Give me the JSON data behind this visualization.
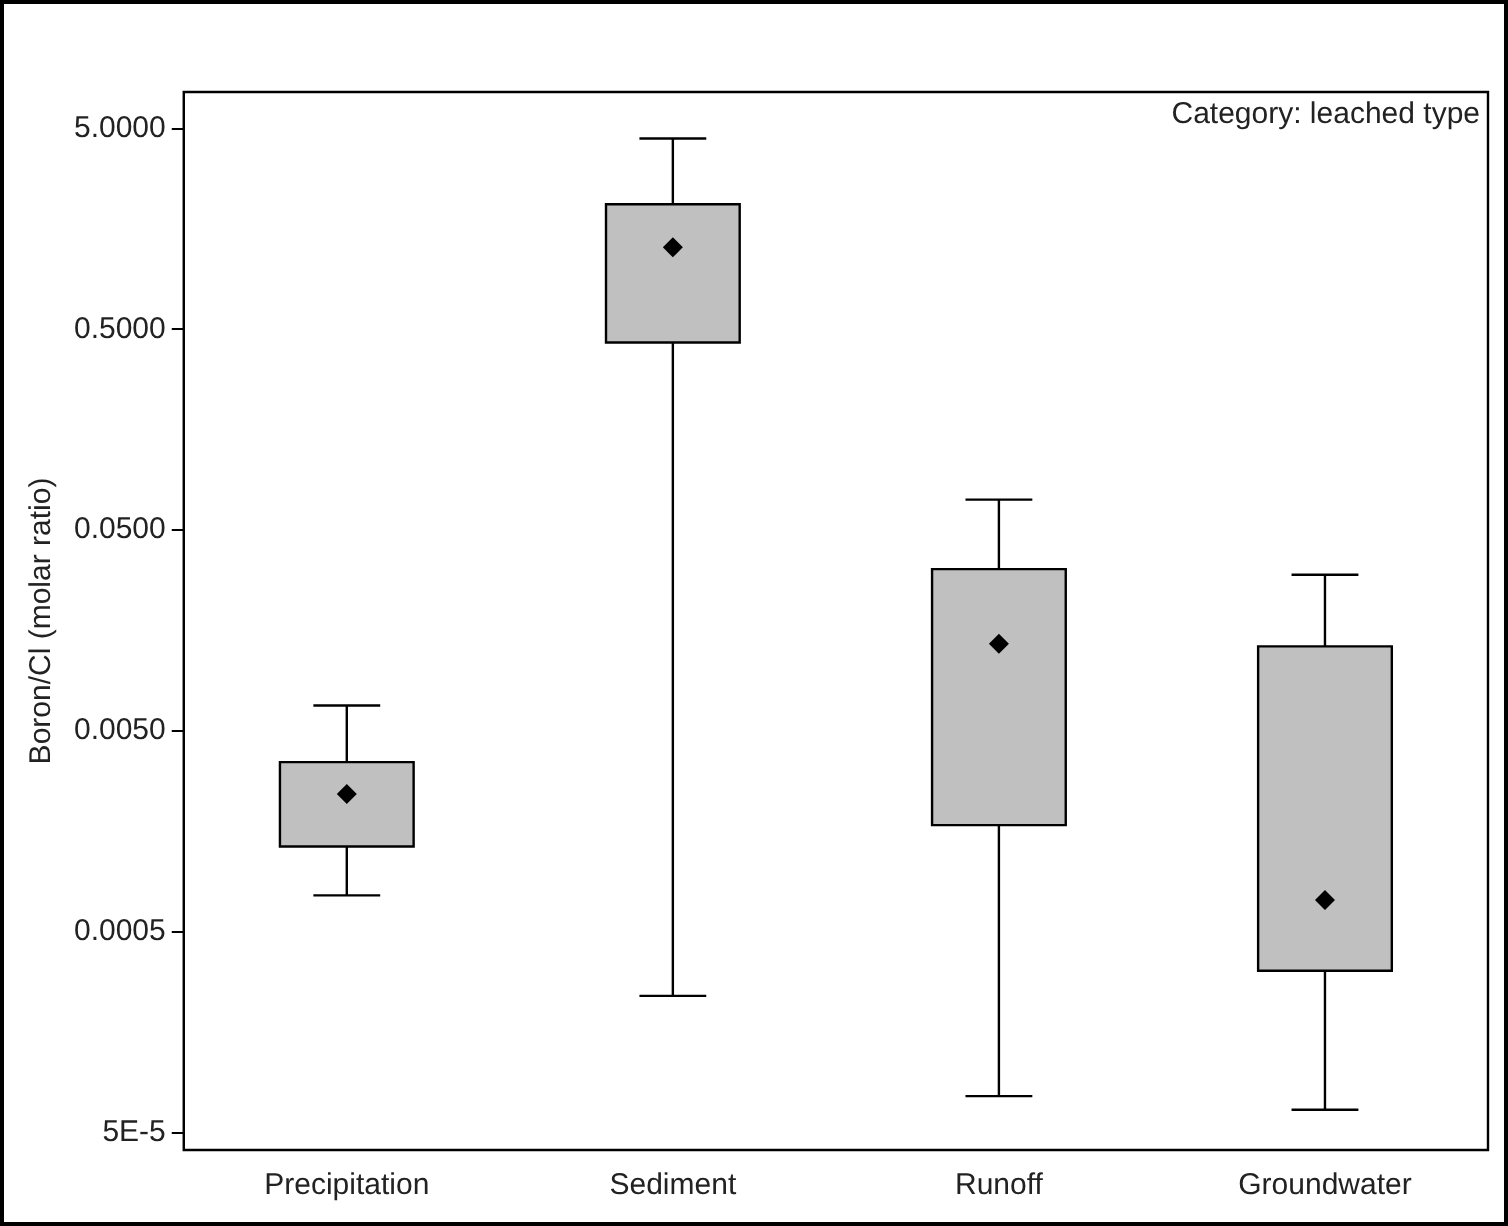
{
  "chart_data": {
    "type": "box",
    "ylabel": "Boron/Cl (molar ratio)",
    "categories": [
      "Precipitation",
      "Sediment",
      "Runoff",
      "Groundwater"
    ],
    "series": [
      {
        "color": "#c0c0c0",
        "boxes": [
          {
            "low": 0.00076,
            "q1": 0.00133,
            "median": 0.00243,
            "q3": 0.0035,
            "high": 0.0067
          },
          {
            "low": 0.00024,
            "q1": 0.43,
            "median": 1.28,
            "q3": 2.1,
            "high": 4.46
          },
          {
            "low": 7.6e-05,
            "q1": 0.0017,
            "median": 0.0136,
            "q3": 0.032,
            "high": 0.071
          },
          {
            "low": 6.5e-05,
            "q1": 0.00032,
            "median": 0.00072,
            "q3": 0.0132,
            "high": 0.03
          }
        ]
      }
    ],
    "log": "y",
    "ylim": [
      4.1e-05,
      7.6
    ],
    "yticks": [
      {
        "value": 5e-05,
        "label": "5E-5"
      },
      {
        "value": 0.0005,
        "label": "0.0005"
      },
      {
        "value": 0.005,
        "label": "0.0050"
      },
      {
        "value": 0.05,
        "label": "0.0500"
      },
      {
        "value": 0.5,
        "label": "0.5000"
      },
      {
        "value": 5,
        "label": "5.0000"
      }
    ],
    "marker": "diamond",
    "grid": false,
    "legend": false,
    "annotations": [
      "Category: leached type"
    ]
  }
}
